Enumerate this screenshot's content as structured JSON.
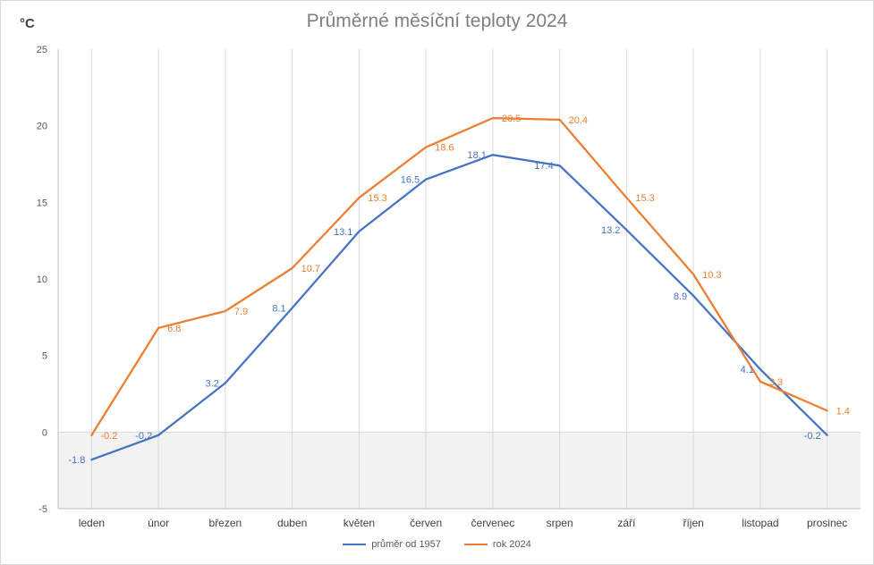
{
  "chart_data": {
    "type": "line",
    "title": "Průměrné měsíční teploty 2024",
    "ylabel": "°C",
    "xlabel": "",
    "ylim": [
      -5,
      25
    ],
    "yticks": [
      -5,
      0,
      5,
      10,
      15,
      20,
      25
    ],
    "categories": [
      "leden",
      "únor",
      "březen",
      "duben",
      "květen",
      "červen",
      "červenec",
      "srpen",
      "září",
      "říjen",
      "listopad",
      "prosinec"
    ],
    "series": [
      {
        "name": "průměr od 1957",
        "color": "#4472c4",
        "values": [
          -1.8,
          -0.2,
          3.2,
          8.1,
          13.1,
          16.5,
          18.1,
          17.4,
          13.2,
          8.9,
          4.1,
          -0.2
        ]
      },
      {
        "name": "rok 2024",
        "color": "#ed7d31",
        "values": [
          -0.2,
          6.8,
          7.9,
          10.7,
          15.3,
          18.6,
          20.5,
          20.4,
          15.3,
          10.3,
          3.3,
          1.4
        ]
      }
    ],
    "grid": "vertical",
    "legend": "bottom"
  }
}
